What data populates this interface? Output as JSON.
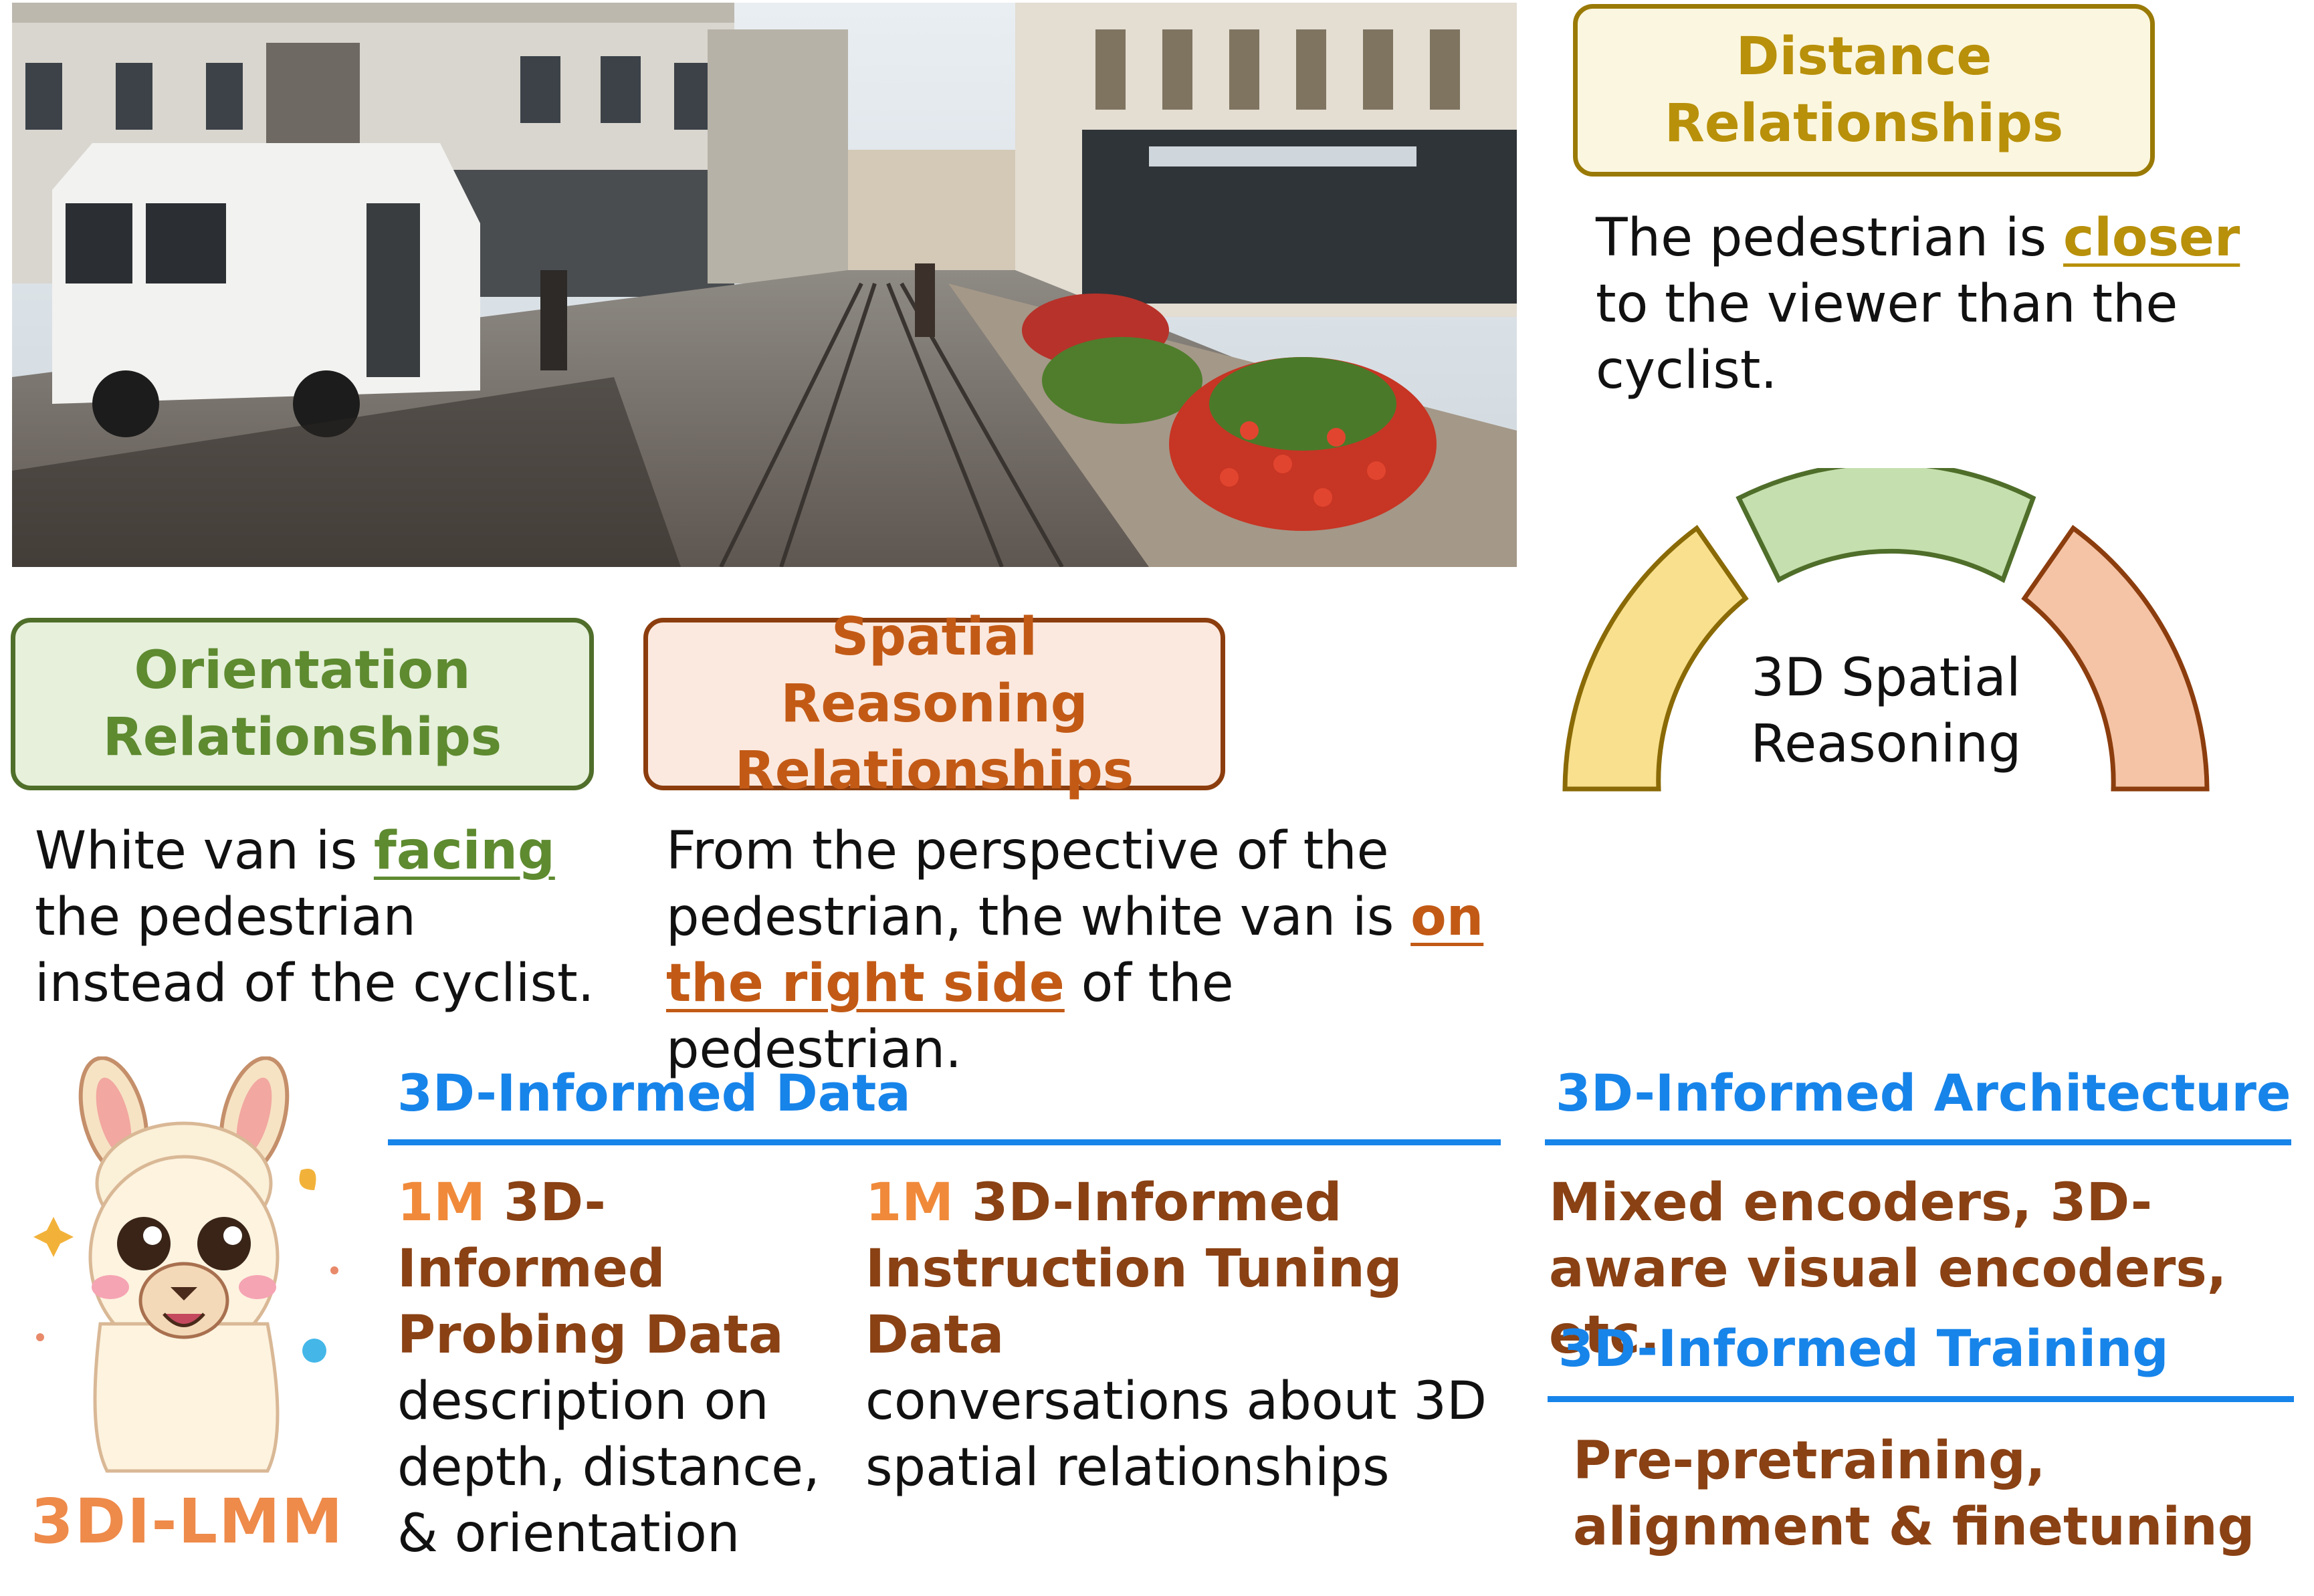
{
  "distance": {
    "title": "Distance Relationships",
    "desc_prefix": "The pedestrian is ",
    "desc_highlight": "closer",
    "desc_suffix": " to the viewer than the cyclist."
  },
  "orientation": {
    "title": "Orientation Relationships",
    "desc_prefix": "White van is ",
    "desc_highlight": "facing",
    "desc_suffix": " the pedestrian instead of the cyclist."
  },
  "spatial": {
    "title": "Spatial Reasoning Relationships",
    "desc_prefix": "From the perspective of the pedestrian, the white van is ",
    "desc_highlight": "on the right side",
    "desc_suffix": " of the pedestrian."
  },
  "arc": {
    "line1": "3D Spatial",
    "line2": "Reasoning"
  },
  "data_section": {
    "title": "3D-Informed Data",
    "probing": {
      "count": "1M",
      "name": " 3D-Informed Probing Data",
      "desc": "description on depth, distance, & orientation"
    },
    "instruction": {
      "count": "1M",
      "name": " 3D-Informed Instruction Tuning Data",
      "desc": "conversations about 3D spatial relationships"
    }
  },
  "architecture": {
    "title": "3D-Informed Architecture",
    "desc": "Mixed encoders, 3D-aware visual encoders, etc."
  },
  "training": {
    "title": "3D-Informed Training",
    "desc": "Pre-pretraining, alignment & finetuning"
  },
  "logo": {
    "text": "3DI-LMM"
  },
  "colors": {
    "distance": "#b8900a",
    "orientation": "#5e8a30",
    "spatial": "#c25a16",
    "section_blue": "#1784ea",
    "brown_text": "#8a4114",
    "count_orange": "#f08a3a",
    "arc_yellow": "#f8e08e",
    "arc_green": "#c5dfae",
    "arc_peach": "#f5c4a6"
  }
}
